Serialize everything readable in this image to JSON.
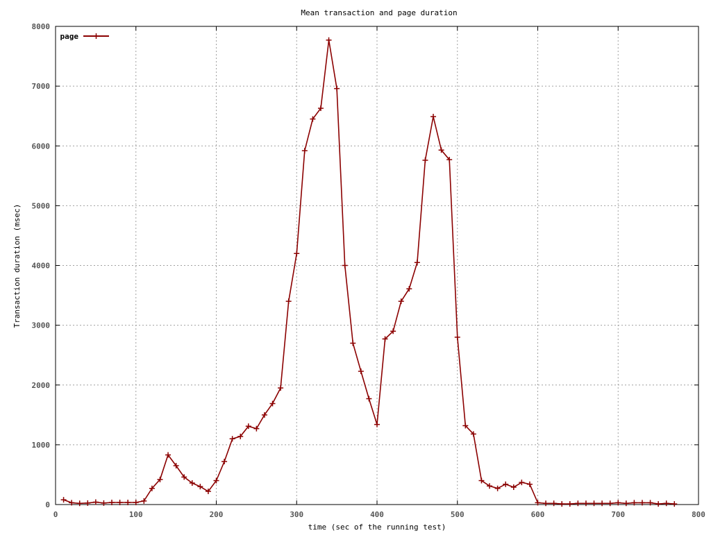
{
  "chart_data": {
    "type": "line",
    "title": "Mean transaction and page duration",
    "xlabel": "time (sec of the running test)",
    "ylabel": "Transaction duration (msec)",
    "xlim": [
      0,
      800
    ],
    "ylim": [
      0,
      8000
    ],
    "xticks": [
      0,
      100,
      200,
      300,
      400,
      500,
      600,
      700,
      800
    ],
    "yticks": [
      0,
      1000,
      2000,
      3000,
      4000,
      5000,
      6000,
      7000,
      8000
    ],
    "grid": true,
    "legend_position": "top-left",
    "series": [
      {
        "name": "page",
        "color": "#8b0000",
        "marker": "plus",
        "x": [
          10,
          20,
          30,
          40,
          50,
          60,
          70,
          80,
          90,
          100,
          110,
          120,
          130,
          140,
          150,
          160,
          170,
          180,
          190,
          200,
          210,
          220,
          230,
          240,
          250,
          260,
          270,
          280,
          290,
          300,
          310,
          320,
          330,
          340,
          350,
          360,
          370,
          380,
          390,
          400,
          410,
          420,
          430,
          440,
          450,
          460,
          470,
          480,
          490,
          500,
          510,
          520,
          530,
          540,
          550,
          560,
          570,
          580,
          590,
          600,
          610,
          620,
          630,
          640,
          650,
          660,
          670,
          680,
          690,
          700,
          710,
          720,
          730,
          740,
          750,
          760,
          770
        ],
        "y": [
          80,
          30,
          20,
          25,
          40,
          25,
          35,
          35,
          35,
          35,
          60,
          270,
          420,
          830,
          650,
          460,
          360,
          300,
          220,
          400,
          720,
          1100,
          1140,
          1310,
          1270,
          1500,
          1690,
          1950,
          3400,
          4200,
          5920,
          6450,
          6630,
          7770,
          6960,
          4000,
          2700,
          2230,
          1770,
          1340,
          2770,
          2900,
          3400,
          3610,
          4050,
          5760,
          6490,
          5930,
          5770,
          2800,
          1320,
          1180,
          400,
          310,
          270,
          340,
          290,
          370,
          340,
          30,
          20,
          20,
          10,
          10,
          20,
          20,
          20,
          20,
          20,
          30,
          20,
          30,
          30,
          30,
          10,
          20,
          10
        ]
      }
    ]
  }
}
